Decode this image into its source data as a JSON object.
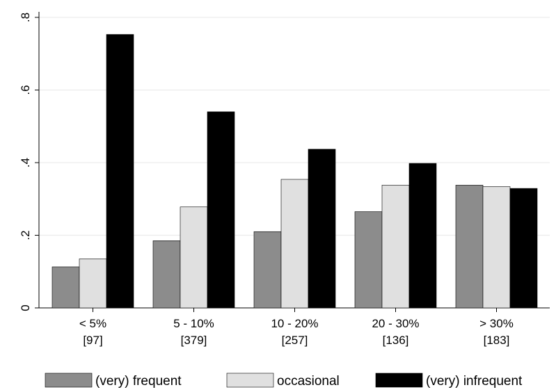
{
  "chart_data": {
    "type": "bar",
    "title": "",
    "xlabel": "",
    "ylabel": "",
    "ylim": [
      0,
      0.8
    ],
    "yticks": [
      0,
      0.2,
      0.4,
      0.6,
      0.8
    ],
    "ytick_labels": [
      "0",
      ".2",
      ".4",
      ".6",
      ".8"
    ],
    "grid": true,
    "legend_position": "bottom",
    "categories": [
      "< 5%",
      "5 - 10%",
      "10 - 20%",
      "20 - 30%",
      "> 30%"
    ],
    "category_counts": [
      "[97]",
      "[379]",
      "[257]",
      "[136]",
      "[183]"
    ],
    "series": [
      {
        "name": "(very) frequent",
        "color": "#8c8c8c",
        "values": [
          0.113,
          0.185,
          0.21,
          0.265,
          0.338
        ]
      },
      {
        "name": "occasional",
        "color": "#e0e0e0",
        "values": [
          0.135,
          0.278,
          0.354,
          0.338,
          0.334
        ]
      },
      {
        "name": "(very) infrequent",
        "color": "#000000",
        "values": [
          0.753,
          0.54,
          0.437,
          0.398,
          0.329
        ]
      }
    ]
  }
}
